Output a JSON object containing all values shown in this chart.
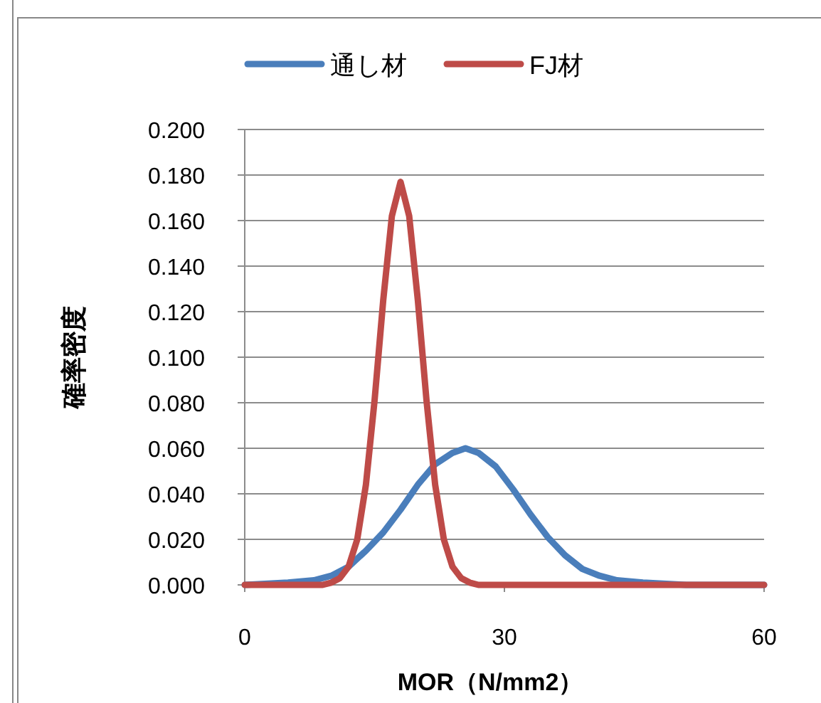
{
  "chart_data": {
    "type": "line",
    "xlabel": "MOR（N/mm2）",
    "ylabel": "確率密度",
    "xlim": [
      0,
      60
    ],
    "xticks": [
      0,
      30,
      60
    ],
    "ylim": [
      0,
      0.2
    ],
    "yticks": [
      {
        "value": 0,
        "label": "0.000"
      },
      {
        "value": 0.02,
        "label": "0.020"
      },
      {
        "value": 0.04,
        "label": "0.040"
      },
      {
        "value": 0.06,
        "label": "0.060"
      },
      {
        "value": 0.08,
        "label": "0.080"
      },
      {
        "value": 0.1,
        "label": "0.100"
      },
      {
        "value": 0.12,
        "label": "0.120"
      },
      {
        "value": 0.14,
        "label": "0.140"
      },
      {
        "value": 0.16,
        "label": "0.160"
      },
      {
        "value": 0.18,
        "label": "0.180"
      },
      {
        "value": 0.2,
        "label": "0.200"
      }
    ],
    "grid": "y",
    "legend": "top",
    "marker": "none",
    "line_style": "solid",
    "series": [
      {
        "name": "通し材",
        "color": "#4a7ebb",
        "x": [
          0,
          5,
          8,
          10,
          12,
          14,
          16,
          18,
          20,
          22,
          24,
          25.5,
          27,
          29,
          31,
          33,
          35,
          37,
          39,
          41,
          43,
          46,
          51,
          60
        ],
        "values": [
          0,
          0.001,
          0.002,
          0.004,
          0.008,
          0.015,
          0.023,
          0.033,
          0.044,
          0.053,
          0.058,
          0.06,
          0.058,
          0.052,
          0.042,
          0.031,
          0.021,
          0.013,
          0.007,
          0.004,
          0.002,
          0.001,
          0,
          0
        ]
      },
      {
        "name": "FJ材",
        "color": "#be4b48",
        "x": [
          0,
          9,
          10,
          11,
          12,
          13,
          14,
          15,
          16,
          17,
          18,
          19,
          20,
          21,
          22,
          23,
          24,
          25,
          26,
          27,
          60
        ],
        "values": [
          0,
          0,
          0.001,
          0.003,
          0.008,
          0.02,
          0.044,
          0.081,
          0.125,
          0.162,
          0.177,
          0.162,
          0.125,
          0.081,
          0.044,
          0.02,
          0.008,
          0.003,
          0.001,
          0,
          0
        ]
      }
    ]
  }
}
